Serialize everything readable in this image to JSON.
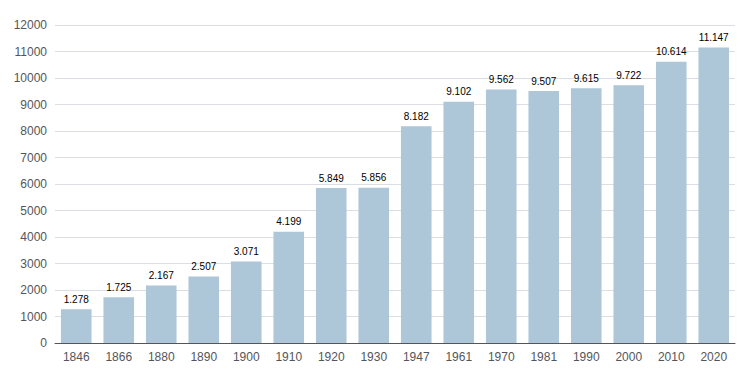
{
  "chart_data": {
    "type": "bar",
    "categories": [
      "1846",
      "1866",
      "1880",
      "1890",
      "1900",
      "1910",
      "1920",
      "1930",
      "1947",
      "1961",
      "1970",
      "1981",
      "1990",
      "2000",
      "2010",
      "2020"
    ],
    "values": [
      1278,
      1725,
      2167,
      2507,
      3071,
      4199,
      5849,
      5856,
      8182,
      9102,
      9562,
      9507,
      9615,
      9722,
      10614,
      11147
    ],
    "value_labels": [
      "1.278",
      "1.725",
      "2.167",
      "2.507",
      "3.071",
      "4.199",
      "5.849",
      "5.856",
      "8.182",
      "9.102",
      "9.562",
      "9.507",
      "9.615",
      "9.722",
      "10.614",
      "11.147"
    ],
    "color": "#adc6d8",
    "ylim": [
      0,
      12000
    ],
    "yticks": [
      0,
      1000,
      2000,
      3000,
      4000,
      5000,
      6000,
      7000,
      8000,
      9000,
      10000,
      11000,
      12000
    ],
    "grid": true,
    "data_labels": true
  }
}
